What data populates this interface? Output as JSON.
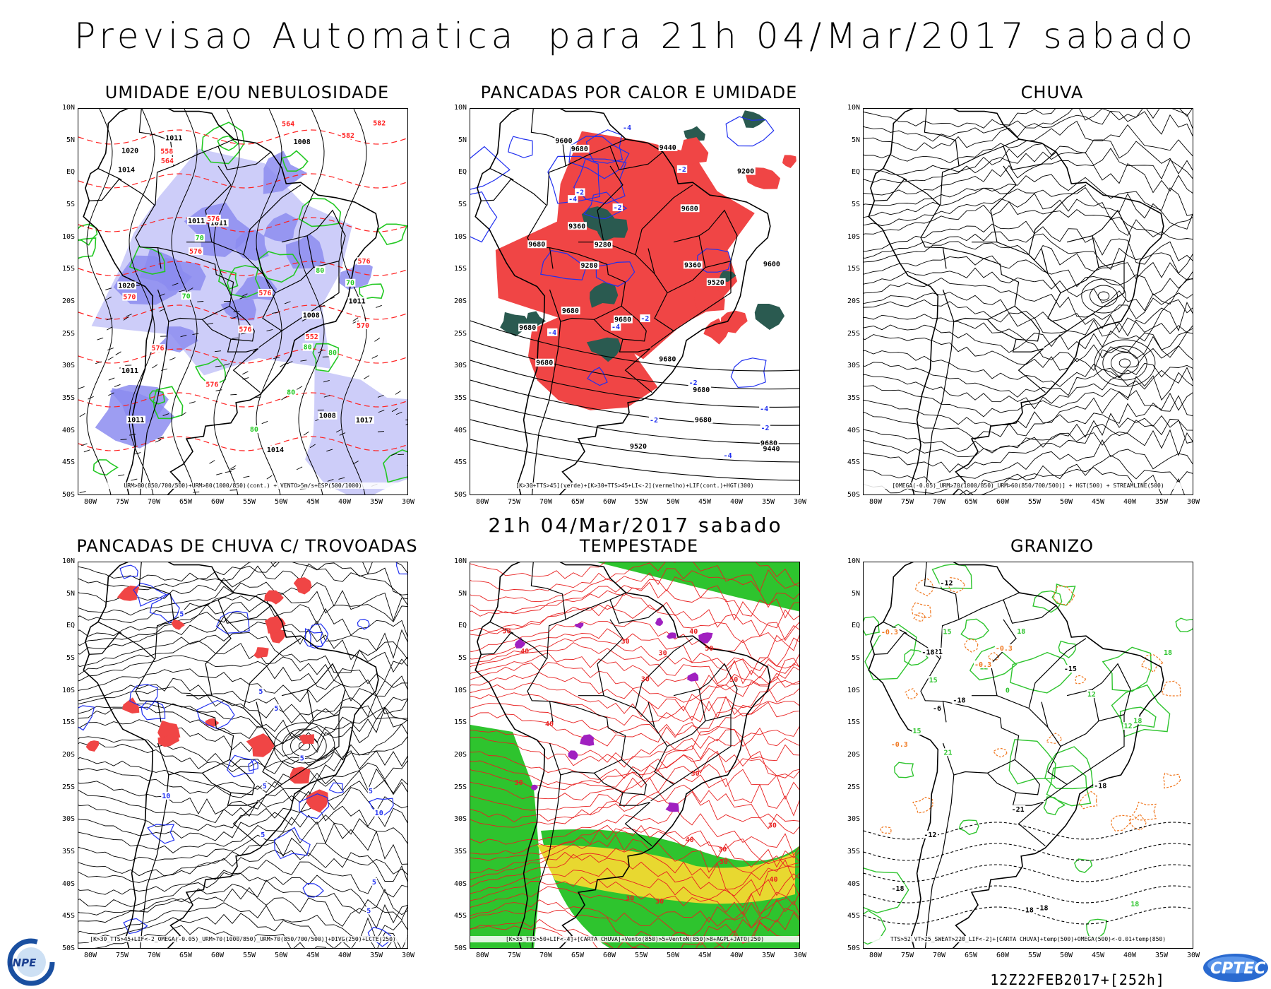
{
  "header": {
    "title": "Previsao Automatica  para 21h 04/Mar/2017 sabado",
    "subtitle": "21h 04/Mar/2017 sabado"
  },
  "axes": {
    "lat_labels": [
      "10N",
      "5N",
      "EQ",
      "5S",
      "10S",
      "15S",
      "20S",
      "25S",
      "30S",
      "35S",
      "40S",
      "45S",
      "50S"
    ],
    "lon_labels": [
      "80W",
      "75W",
      "70W",
      "65W",
      "60W",
      "55W",
      "50W",
      "45W",
      "40W",
      "35W",
      "30W"
    ]
  },
  "panels": [
    {
      "id": "umidade",
      "title": "UMIDADE E/OU NEBULOSIDADE",
      "caption": "URM>80(850/700/500)+URM>80(1000/850)(cont.) + VENTO>5m/s+ESP(500/1000)",
      "labels": [
        "1008",
        "1011",
        "1011",
        "1011",
        "1011",
        "1008",
        "1011",
        "1008",
        "1011",
        "1014",
        "1014",
        "1020",
        "1020",
        "1017",
        "576",
        "576",
        "576",
        "576",
        "576",
        "576",
        "582",
        "582",
        "576",
        "570",
        "564",
        "558",
        "552",
        "570",
        "564",
        "80",
        "80",
        "80",
        "70",
        "70",
        "70",
        "80",
        "80"
      ]
    },
    {
      "id": "pancadas-calor",
      "title": "PANCADAS POR CALOR E UMIDADE",
      "caption": "[K>30+TTS>45](verde)+[K>30+TTS>45+LI<-2](vermelho)+LIF(cont.)+HGT(300)",
      "labels": [
        "9680",
        "9680",
        "9680",
        "9680",
        "9680",
        "9680",
        "9680",
        "9680",
        "9680",
        "9680",
        "9680",
        "9600",
        "9520",
        "9440",
        "9360",
        "9280",
        "9200",
        "9440",
        "9360",
        "9280",
        "9600",
        "9520",
        "-2",
        "-2",
        "-4",
        "-4",
        "-4",
        "-2",
        "-2",
        "-4",
        "-2",
        "-4",
        "-2",
        "-2",
        "-4"
      ]
    },
    {
      "id": "chuva",
      "title": "CHUVA",
      "caption": "[OMEGA(-0.05)_URM>70(1000/850)_URM>60(850/700/500)] + HGT(500) + STREAMLINE(500)",
      "labels": []
    },
    {
      "id": "pancadas-trovoadas",
      "title": "PANCADAS DE CHUVA C/ TROVOADAS",
      "caption": "[K>30_TTS>45+LIF<-2_OMEGA(-0.05)_URM>70(1000/850)_URM>70(850/700/500)]+DIVG(250)+LCTE(250)",
      "labels": [
        "5",
        "5",
        "5",
        "5",
        "5",
        "5",
        "5",
        "5",
        "10",
        "10",
        "5"
      ]
    },
    {
      "id": "tempestade",
      "title": "TEMPESTADE",
      "caption": "[K>35_TTS>50+LIF<-4]+[CARTA CHUVA]+Vento(850)>5+VentoN(850)>8+AGPL+JATO(250)",
      "labels": [
        "30",
        "30",
        "50",
        "50",
        "30",
        "30",
        "30",
        "40",
        "40",
        "30",
        "30",
        "30",
        "30",
        "40",
        "40",
        "50",
        "30",
        "40"
      ]
    },
    {
      "id": "granizo",
      "title": "GRANIZO",
      "caption": "TTS>52_VT>25_SWEAT>220_LIF<-2]+[CARTA CHUVA]+temp(500)+OMEGA(500)<-0.01+temp(850)",
      "labels": [
        "-18",
        "-18",
        "-18",
        "-18",
        "-18",
        "-15",
        "-12",
        "-21",
        "-21",
        "21",
        "18",
        "18",
        "15",
        "15",
        "18",
        "15",
        "12",
        "12",
        "18",
        "12",
        "-0.3",
        "-0.3",
        "-0.3",
        "-0.3",
        "-18",
        "-12",
        "-6",
        "0"
      ]
    }
  ],
  "footer": {
    "run_code": "12Z22FEB2017+[252h]",
    "logo_left": "INPE",
    "logo_right": "CPTEC"
  },
  "colors": {
    "humidity_fill": "#8c8cf0",
    "humidity_light": "#c8c8f8",
    "contour_green": "#22c822",
    "contour_red": "#ff2020",
    "instability_red": "#f04545",
    "instability_teal": "#2a5a50",
    "contour_blue": "#2030f0",
    "storm_green": "#2ec42e",
    "jet_yellow": "#e8d830",
    "streamline_red": "#e82020",
    "purple": "#a020c0",
    "orange": "#f07820"
  }
}
